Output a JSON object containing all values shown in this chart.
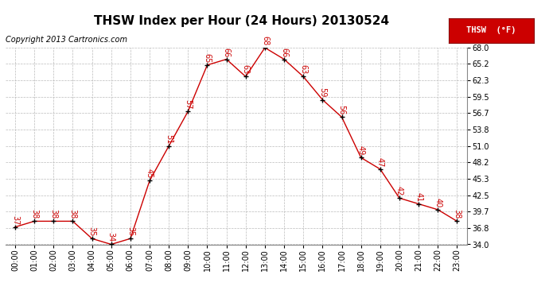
{
  "title": "THSW Index per Hour (24 Hours) 20130524",
  "copyright": "Copyright 2013 Cartronics.com",
  "legend_label": "THSW  (°F)",
  "hours": [
    "00:00",
    "01:00",
    "02:00",
    "03:00",
    "04:00",
    "05:00",
    "06:00",
    "07:00",
    "08:00",
    "09:00",
    "10:00",
    "11:00",
    "12:00",
    "13:00",
    "14:00",
    "15:00",
    "16:00",
    "17:00",
    "18:00",
    "19:00",
    "20:00",
    "21:00",
    "22:00",
    "23:00"
  ],
  "values": [
    37,
    38,
    38,
    38,
    35,
    34,
    35,
    45,
    51,
    57,
    65,
    66,
    63,
    68,
    66,
    63,
    59,
    56,
    49,
    47,
    42,
    41,
    40,
    38
  ],
  "ylim": [
    34.0,
    68.0
  ],
  "yticks": [
    34.0,
    36.8,
    39.7,
    42.5,
    45.3,
    48.2,
    51.0,
    53.8,
    56.7,
    59.5,
    62.3,
    65.2,
    68.0
  ],
  "line_color": "#cc0000",
  "marker_color": "#000000",
  "label_color": "#cc0000",
  "bg_color": "#ffffff",
  "grid_color": "#bbbbbb",
  "title_fontsize": 11,
  "label_fontsize": 7,
  "copyright_fontsize": 7,
  "tick_fontsize": 7,
  "legend_fontsize": 7.5
}
